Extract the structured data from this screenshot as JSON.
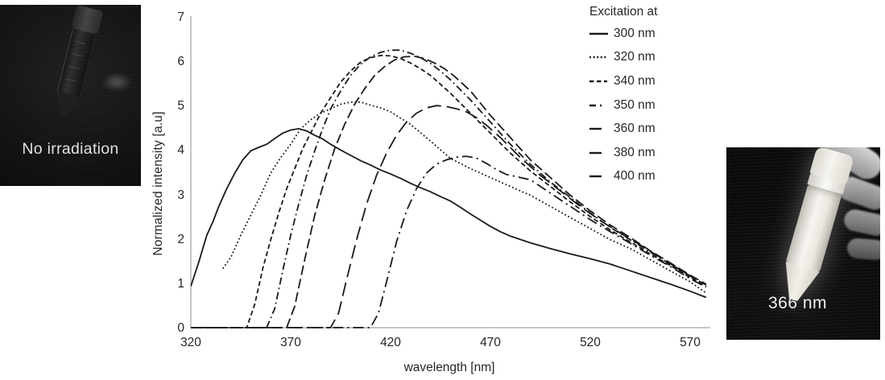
{
  "photos": {
    "left": {
      "caption": "No irradiation"
    },
    "right": {
      "caption": "366 nm"
    }
  },
  "chart_data": {
    "type": "line",
    "title": "",
    "xlabel": "wavelength [nm]",
    "ylabel": "Normalized intensity [a.u]",
    "legend_title": "Excitation at",
    "legend_position": "top-right-outside",
    "grid": false,
    "x_ticks": [
      320,
      370,
      420,
      470,
      520,
      570
    ],
    "y_ticks": [
      0,
      1,
      2,
      3,
      4,
      5,
      6,
      7
    ],
    "xlim": [
      320,
      579
    ],
    "ylim": [
      0,
      7
    ],
    "line_color": "#1a1a1a",
    "axis_color": "#c6c6c6",
    "text_color": "#262626",
    "series": [
      {
        "name": "ex300",
        "label": "300 nm",
        "dash": [],
        "legend_dash": [],
        "legend_len": 23,
        "x": [
          320,
          324,
          328,
          331,
          334,
          338,
          342,
          346,
          350,
          354,
          358,
          362,
          366,
          370,
          374,
          378,
          382,
          386,
          390,
          395,
          400,
          405,
          410,
          415,
          420,
          425,
          430,
          435,
          440,
          445,
          450,
          455,
          460,
          465,
          470,
          475,
          480,
          490,
          500,
          510,
          520,
          530,
          540,
          550,
          560,
          570,
          578
        ],
        "y": [
          0.95,
          1.5,
          2.1,
          2.4,
          2.75,
          3.15,
          3.5,
          3.8,
          4.0,
          4.08,
          4.15,
          4.28,
          4.4,
          4.47,
          4.5,
          4.45,
          4.35,
          4.27,
          4.15,
          4.02,
          3.9,
          3.78,
          3.68,
          3.57,
          3.48,
          3.38,
          3.27,
          3.17,
          3.08,
          2.97,
          2.87,
          2.73,
          2.58,
          2.44,
          2.3,
          2.18,
          2.08,
          1.93,
          1.8,
          1.68,
          1.57,
          1.45,
          1.3,
          1.15,
          1.0,
          0.84,
          0.7
        ]
      },
      {
        "name": "ex320",
        "label": "320 nm",
        "dash": [
          1.8,
          2.8
        ],
        "legend_dash": [
          2,
          2.6
        ],
        "legend_len": 22,
        "x": [
          336,
          340,
          345,
          350,
          355,
          360,
          365,
          370,
          375,
          380,
          385,
          390,
          395,
          400,
          405,
          410,
          415,
          420,
          430,
          440,
          450,
          460,
          470,
          480,
          490,
          500,
          510,
          520,
          530,
          540,
          550,
          560,
          570,
          578
        ],
        "y": [
          1.35,
          1.6,
          2.1,
          2.55,
          3.0,
          3.5,
          3.85,
          4.15,
          4.5,
          4.7,
          4.85,
          4.95,
          5.05,
          5.1,
          5.1,
          5.03,
          4.97,
          4.88,
          4.6,
          4.22,
          3.83,
          3.6,
          3.4,
          3.2,
          3.0,
          2.75,
          2.5,
          2.25,
          2.0,
          1.8,
          1.55,
          1.3,
          1.05,
          0.8
        ]
      },
      {
        "name": "ex340",
        "label": "340 nm",
        "dash": [
          6,
          3.5
        ],
        "legend_dash": [
          5.5,
          3.5
        ],
        "legend_len": 22,
        "x": [
          320,
          348,
          352,
          356,
          360,
          364,
          368,
          372,
          376,
          380,
          385,
          390,
          395,
          400,
          405,
          410,
          415,
          420,
          425,
          430,
          435,
          440,
          445,
          450,
          460,
          470,
          480,
          490,
          500,
          510,
          520,
          530,
          540,
          550,
          560,
          570,
          578
        ],
        "y": [
          0.02,
          0.02,
          0.55,
          1.35,
          2.0,
          2.6,
          3.15,
          3.6,
          4.05,
          4.4,
          4.85,
          5.2,
          5.55,
          5.8,
          6.0,
          6.1,
          6.15,
          6.14,
          6.08,
          5.98,
          5.85,
          5.7,
          5.5,
          5.3,
          4.85,
          4.4,
          3.95,
          3.55,
          3.2,
          2.85,
          2.52,
          2.22,
          1.95,
          1.68,
          1.42,
          1.15,
          0.95
        ]
      },
      {
        "name": "ex350",
        "label": "350 nm",
        "dash": [
          9,
          4,
          1.8,
          4
        ],
        "legend_dash": [
          8,
          5,
          2,
          6
        ],
        "legend_len": 16,
        "x": [
          320,
          358,
          362,
          366,
          370,
          374,
          378,
          382,
          386,
          390,
          395,
          400,
          405,
          410,
          415,
          420,
          425,
          430,
          435,
          440,
          445,
          450,
          460,
          470,
          480,
          490,
          500,
          510,
          520,
          530,
          540,
          550,
          560,
          570,
          578
        ],
        "y": [
          0.02,
          0.02,
          0.45,
          1.3,
          2.1,
          2.8,
          3.45,
          4.0,
          4.5,
          4.95,
          5.35,
          5.7,
          5.95,
          6.12,
          6.22,
          6.27,
          6.27,
          6.2,
          6.1,
          5.97,
          5.8,
          5.6,
          5.15,
          4.65,
          4.15,
          3.7,
          3.3,
          2.95,
          2.6,
          2.28,
          2.0,
          1.72,
          1.45,
          1.18,
          0.98
        ]
      },
      {
        "name": "ex360",
        "label": "360 nm",
        "dash": [
          12,
          5
        ],
        "legend_dash": [],
        "legend_len": 15,
        "x": [
          320,
          368,
          372,
          377,
          382,
          387,
          392,
          397,
          402,
          407,
          412,
          417,
          422,
          427,
          432,
          437,
          442,
          447,
          452,
          460,
          470,
          480,
          490,
          500,
          510,
          520,
          530,
          540,
          550,
          560,
          570,
          578
        ],
        "y": [
          0.02,
          0.02,
          0.5,
          1.55,
          2.55,
          3.35,
          4.05,
          4.6,
          5.05,
          5.4,
          5.7,
          5.9,
          6.05,
          6.12,
          6.13,
          6.08,
          5.98,
          5.85,
          5.68,
          5.35,
          4.8,
          4.3,
          3.8,
          3.4,
          3.0,
          2.65,
          2.33,
          2.05,
          1.75,
          1.48,
          1.2,
          1.0
        ]
      },
      {
        "name": "ex380",
        "label": "380 nm",
        "dash": [
          17,
          7
        ],
        "legend_dash": [],
        "legend_len": 15,
        "x": [
          320,
          390,
          394,
          398,
          403,
          408,
          413,
          418,
          423,
          428,
          433,
          438,
          443,
          448,
          453,
          458,
          463,
          468,
          475,
          485,
          495,
          505,
          515,
          525,
          535,
          545,
          555,
          565,
          575,
          578
        ],
        "y": [
          0.02,
          0.02,
          0.35,
          1.1,
          2.0,
          2.8,
          3.45,
          3.95,
          4.35,
          4.65,
          4.85,
          4.97,
          5.02,
          5.0,
          4.95,
          4.88,
          4.75,
          4.58,
          4.3,
          3.85,
          3.45,
          3.1,
          2.75,
          2.43,
          2.15,
          1.88,
          1.6,
          1.32,
          1.05,
          1.0
        ]
      },
      {
        "name": "ex400",
        "label": "400 nm",
        "dash": [
          13,
          5,
          2.2,
          5
        ],
        "legend_dash": [],
        "legend_len": 15,
        "x": [
          320,
          410,
          414,
          418,
          423,
          428,
          433,
          438,
          443,
          448,
          453,
          458,
          463,
          468,
          473,
          478,
          483,
          490,
          500,
          510,
          520,
          530,
          540,
          550,
          560,
          570,
          578
        ],
        "y": [
          0.02,
          0.02,
          0.35,
          1.05,
          1.95,
          2.65,
          3.15,
          3.5,
          3.7,
          3.8,
          3.86,
          3.88,
          3.84,
          3.72,
          3.58,
          3.47,
          3.42,
          3.35,
          3.05,
          2.75,
          2.45,
          2.18,
          1.92,
          1.65,
          1.4,
          1.12,
          0.93
        ]
      }
    ]
  }
}
